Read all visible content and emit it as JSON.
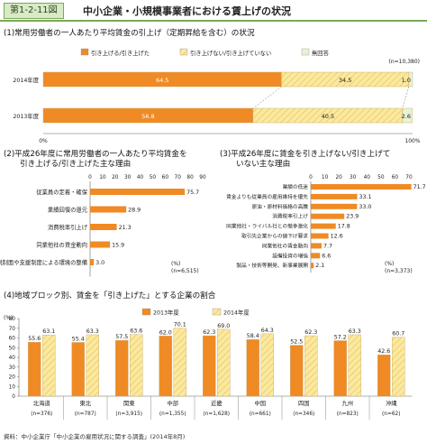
{
  "figure": {
    "number": "第1-2-11図",
    "title": "中小企業・小規模事業者における賃上げの状況",
    "source": "資料：中小企業庁「中小企業の雇用状況に関する調査」(2014年8月)"
  },
  "colors": {
    "orange": "#f08a24",
    "yellow_hatch": "#fbe9a0",
    "hatch_line": "#e7c45a",
    "none_green": "#e6f3d4",
    "accent_green": "#7aa85a"
  },
  "chart_data": [
    {
      "id": "panel1",
      "type": "bar",
      "orientation": "horizontal",
      "stacked": true,
      "percent": true,
      "title": "(1)常用労働者の一人あたり平均賃金の引上げ（定期昇給を含む）の状況",
      "categories": [
        "2014年度",
        "2013年度"
      ],
      "series": [
        {
          "name": "引き上げる/引き上げた",
          "values": [
            64.5,
            56.8
          ],
          "labels": [
            "64.5",
            "56.8"
          ]
        },
        {
          "name": "引き上げない/引き上げていない",
          "values": [
            34.5,
            40.5
          ],
          "labels": [
            "34.5",
            "40.5"
          ]
        },
        {
          "name": "無回答",
          "values": [
            1.0,
            2.6
          ],
          "labels": [
            "1.0",
            "2.6"
          ]
        }
      ],
      "n_note": "(n=10,380)",
      "axis_min_label": "0%",
      "axis_max_label": "100%"
    },
    {
      "id": "panel2",
      "type": "bar",
      "orientation": "horizontal",
      "title_lines": [
        "(2)平成26年度に常用労働者の一人あたり平均賃金を",
        "引き上げる/引き上げた主な理由"
      ],
      "categories": [
        "従業員の定着・確保",
        "業績回復の還元",
        "消費税率引上げ",
        "同業他社の賃金動向",
        "税制面や支援制度による環境の整備"
      ],
      "values": [
        75.7,
        28.9,
        21.3,
        15.9,
        3.0
      ],
      "value_labels": [
        "75.7",
        "28.9",
        "21.3",
        "15.9",
        "3.0"
      ],
      "xlim": [
        0,
        90
      ],
      "ticks": [
        "0",
        "10",
        "20",
        "30",
        "40",
        "50",
        "60",
        "70",
        "80",
        "90"
      ],
      "unit_note": "(%)",
      "n_note": "(n=6,515)"
    },
    {
      "id": "panel3",
      "type": "bar",
      "orientation": "horizontal",
      "title_lines": [
        "(3)平成26年度に賃金を引き上げない/引き上げて",
        "いない主な理由"
      ],
      "categories": [
        "業績の低迷",
        "賃金よりも従業員の雇用維持を優先",
        "原油・原材料価格の高騰",
        "消費税率引上げ",
        "同業他社・ライバル社との競争激化",
        "取引先企業からの値下げ要求",
        "同業他社の賃金動向",
        "設備投資の増強",
        "製品・技術等開発、新事業展開"
      ],
      "values": [
        71.7,
        33.1,
        33.0,
        23.9,
        17.8,
        12.6,
        7.7,
        6.6,
        2.1
      ],
      "value_labels": [
        "71.7",
        "33.1",
        "33.0",
        "23.9",
        "17.8",
        "12.6",
        "7.7",
        "6.6",
        "2.1"
      ],
      "xlim": [
        0,
        70
      ],
      "ticks": [
        "0",
        "10",
        "20",
        "30",
        "40",
        "50",
        "60",
        "70"
      ],
      "unit_note": "(%)",
      "n_note": "(n=3,373)"
    },
    {
      "id": "panel4",
      "type": "bar",
      "orientation": "vertical",
      "title": "(4)地域ブロック別、賃金を「引き上げた」とする企業の割合",
      "categories": [
        "北海道",
        "東北",
        "関東",
        "中部",
        "近畿",
        "中国",
        "四国",
        "九州",
        "沖縄"
      ],
      "sample_sizes": [
        "(n=376)",
        "(n=787)",
        "(n=3,915)",
        "(n=1,355)",
        "(n=1,628)",
        "(n=661)",
        "(n=346)",
        "(n=823)",
        "(n=62)"
      ],
      "series": [
        {
          "name": "2013年度",
          "values": [
            55.6,
            55.4,
            57.5,
            62.0,
            62.3,
            58.4,
            52.5,
            57.2,
            42.6
          ],
          "labels": [
            "55.6",
            "55.4",
            "57.5",
            "62.0",
            "62.3",
            "58.4",
            "52.5",
            "57.2",
            "42.6"
          ]
        },
        {
          "name": "2014年度",
          "values": [
            63.1,
            63.3,
            63.6,
            70.1,
            69.0,
            64.3,
            62.3,
            63.3,
            60.7
          ],
          "labels": [
            "63.1",
            "63.3",
            "63.6",
            "70.1",
            "69.0",
            "64.3",
            "62.3",
            "63.3",
            "60.7"
          ]
        }
      ],
      "ylim": [
        0,
        80
      ],
      "yticks": [
        "0",
        "10",
        "20",
        "30",
        "40",
        "50",
        "60",
        "70",
        "80"
      ],
      "unit_note": "(%)"
    }
  ]
}
